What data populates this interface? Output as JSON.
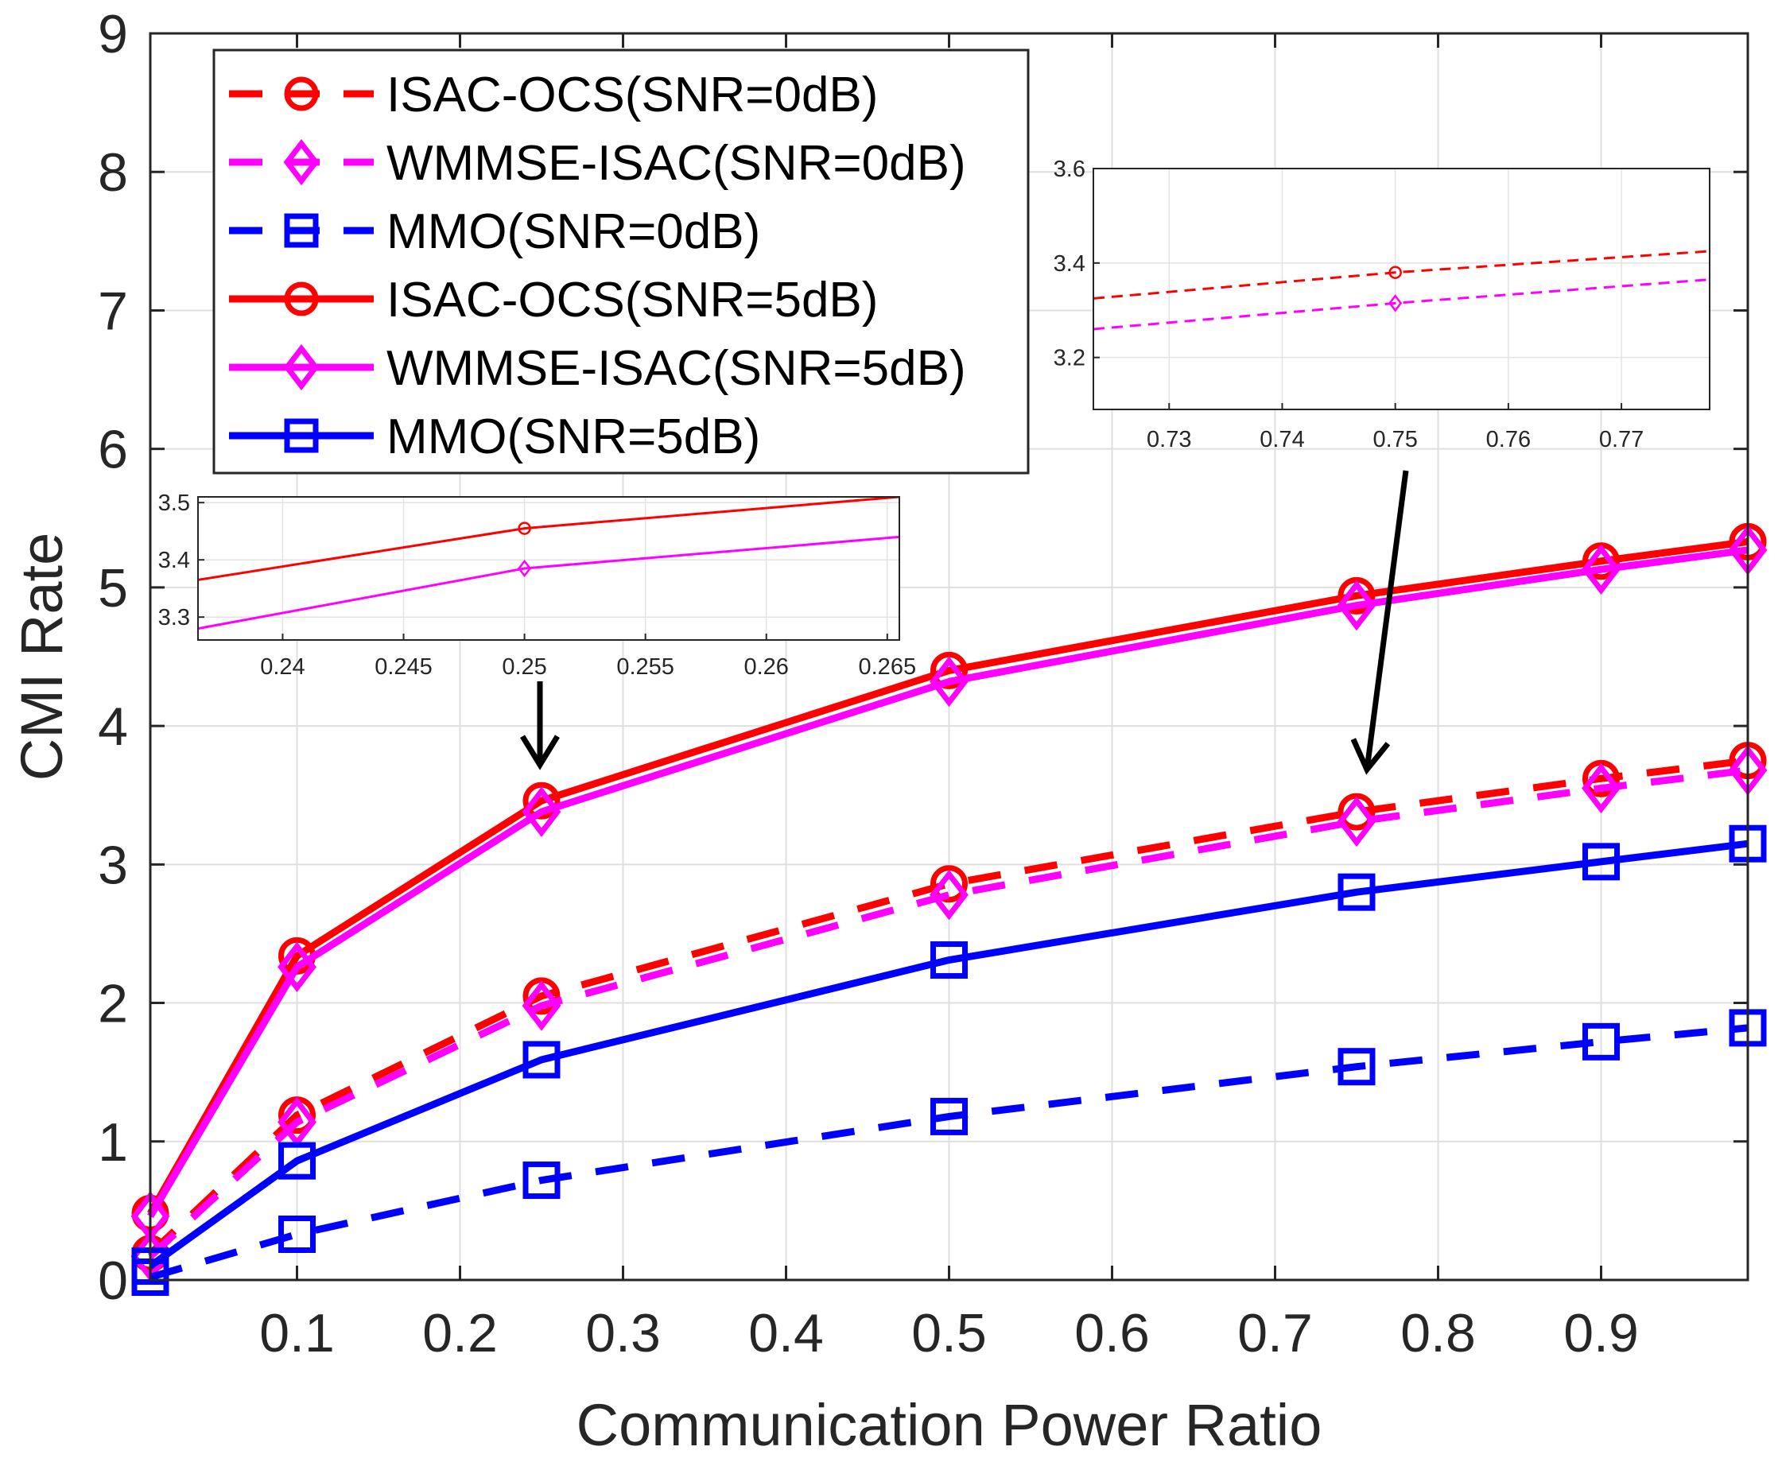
{
  "chart_data": {
    "type": "line",
    "title": "",
    "xlabel": "Communication Power Ratio",
    "ylabel": "CMI Rate",
    "xlim": [
      0.01,
      0.99
    ],
    "ylim": [
      0,
      9
    ],
    "grid": true,
    "x_ticks": [
      {
        "value": 0.1,
        "label": "0.1"
      },
      {
        "value": 0.2,
        "label": "0.2"
      },
      {
        "value": 0.3,
        "label": "0.3"
      },
      {
        "value": 0.4,
        "label": "0.4"
      },
      {
        "value": 0.5,
        "label": "0.5"
      },
      {
        "value": 0.6,
        "label": "0.6"
      },
      {
        "value": 0.7,
        "label": "0.7"
      },
      {
        "value": 0.8,
        "label": "0.8"
      },
      {
        "value": 0.9,
        "label": "0.9"
      }
    ],
    "y_ticks": [
      {
        "value": 0,
        "label": "0"
      },
      {
        "value": 1,
        "label": "1"
      },
      {
        "value": 2,
        "label": "2"
      },
      {
        "value": 3,
        "label": "3"
      },
      {
        "value": 4,
        "label": "4"
      },
      {
        "value": 5,
        "label": "5"
      },
      {
        "value": 6,
        "label": "6"
      },
      {
        "value": 7,
        "label": "7"
      },
      {
        "value": 8,
        "label": "8"
      },
      {
        "value": 9,
        "label": "9"
      }
    ],
    "x": [
      0.01,
      0.1,
      0.25,
      0.5,
      0.75,
      0.9,
      0.99
    ],
    "series": [
      {
        "name": "ISAC-OCS(SNR=0dB)",
        "color": "#ff0000",
        "dash": "dashed",
        "marker": "circle",
        "values": [
          0.19,
          1.19,
          2.05,
          2.86,
          3.38,
          3.62,
          3.75
        ]
      },
      {
        "name": "WMMSE-ISAC(SNR=0dB)",
        "color": "#ff00ff",
        "dash": "dashed",
        "marker": "diamond",
        "values": [
          0.17,
          1.14,
          1.98,
          2.78,
          3.31,
          3.55,
          3.68
        ]
      },
      {
        "name": "MMO(SNR=0dB)",
        "color": "#0000ff",
        "dash": "dashed",
        "marker": "square",
        "values": [
          0.02,
          0.33,
          0.72,
          1.18,
          1.54,
          1.72,
          1.82
        ]
      },
      {
        "name": "ISAC-OCS(SNR=5dB)",
        "color": "#ff0000",
        "dash": "solid",
        "marker": "circle",
        "values": [
          0.48,
          2.34,
          3.46,
          4.4,
          4.94,
          5.19,
          5.33
        ]
      },
      {
        "name": "WMMSE-ISAC(SNR=5dB)",
        "color": "#ff00ff",
        "dash": "solid",
        "marker": "diamond",
        "values": [
          0.46,
          2.26,
          3.38,
          4.32,
          4.87,
          5.13,
          5.27
        ]
      },
      {
        "name": "MMO(SNR=5dB)",
        "color": "#0000ff",
        "dash": "solid",
        "marker": "square",
        "values": [
          0.1,
          0.86,
          1.59,
          2.31,
          2.8,
          3.02,
          3.15
        ]
      }
    ],
    "legend_position": "top-left",
    "insets": [
      {
        "name": "zoom-0.25",
        "xlim": [
          0.2365,
          0.2655
        ],
        "ylim": [
          3.26,
          3.51
        ],
        "x_ticks": [
          {
            "value": 0.24,
            "label": "0.24"
          },
          {
            "value": 0.245,
            "label": "0.245"
          },
          {
            "value": 0.25,
            "label": "0.25"
          },
          {
            "value": 0.255,
            "label": "0.255"
          },
          {
            "value": 0.26,
            "label": "0.26"
          },
          {
            "value": 0.265,
            "label": "0.265"
          }
        ],
        "y_ticks": [
          {
            "value": 3.3,
            "label": "3.3"
          },
          {
            "value": 3.4,
            "label": "3.4"
          },
          {
            "value": 3.5,
            "label": "3.5"
          }
        ],
        "lines": [
          {
            "series": "ISAC-OCS(SNR=5dB)",
            "color": "#ff0000",
            "dash": "solid",
            "marker": "circle",
            "points": [
              [
                0.2365,
                3.365
              ],
              [
                0.25,
                3.455
              ],
              [
                0.2655,
                3.51
              ]
            ],
            "marker_x": 0.25
          },
          {
            "series": "WMMSE-ISAC(SNR=5dB)",
            "color": "#ff00ff",
            "dash": "solid",
            "marker": "diamond",
            "points": [
              [
                0.2365,
                3.28
              ],
              [
                0.25,
                3.385
              ],
              [
                0.2655,
                3.44
              ]
            ],
            "marker_x": 0.25
          }
        ],
        "pointer_to": {
          "x": 0.25,
          "y": 3.46
        }
      },
      {
        "name": "zoom-0.75",
        "xlim": [
          0.7233,
          0.7778
        ],
        "ylim": [
          3.09,
          3.6
        ],
        "x_ticks": [
          {
            "value": 0.73,
            "label": "0.73"
          },
          {
            "value": 0.74,
            "label": "0.74"
          },
          {
            "value": 0.75,
            "label": "0.75"
          },
          {
            "value": 0.76,
            "label": "0.76"
          },
          {
            "value": 0.77,
            "label": "0.77"
          }
        ],
        "y_ticks": [
          {
            "value": 3.2,
            "label": "3.2"
          },
          {
            "value": 3.4,
            "label": "3.4"
          },
          {
            "value": 3.6,
            "label": "3.6"
          }
        ],
        "lines": [
          {
            "series": "ISAC-OCS(SNR=0dB)",
            "color": "#ff0000",
            "dash": "dashed",
            "marker": "circle",
            "points": [
              [
                0.7233,
                3.325
              ],
              [
                0.75,
                3.38
              ],
              [
                0.7778,
                3.425
              ]
            ],
            "marker_x": 0.75
          },
          {
            "series": "WMMSE-ISAC(SNR=0dB)",
            "color": "#ff00ff",
            "dash": "dashed",
            "marker": "diamond",
            "points": [
              [
                0.7233,
                3.26
              ],
              [
                0.75,
                3.315
              ],
              [
                0.7778,
                3.365
              ]
            ],
            "marker_x": 0.75
          }
        ],
        "pointer_to": {
          "x": 0.75,
          "y": 3.38
        }
      }
    ]
  }
}
